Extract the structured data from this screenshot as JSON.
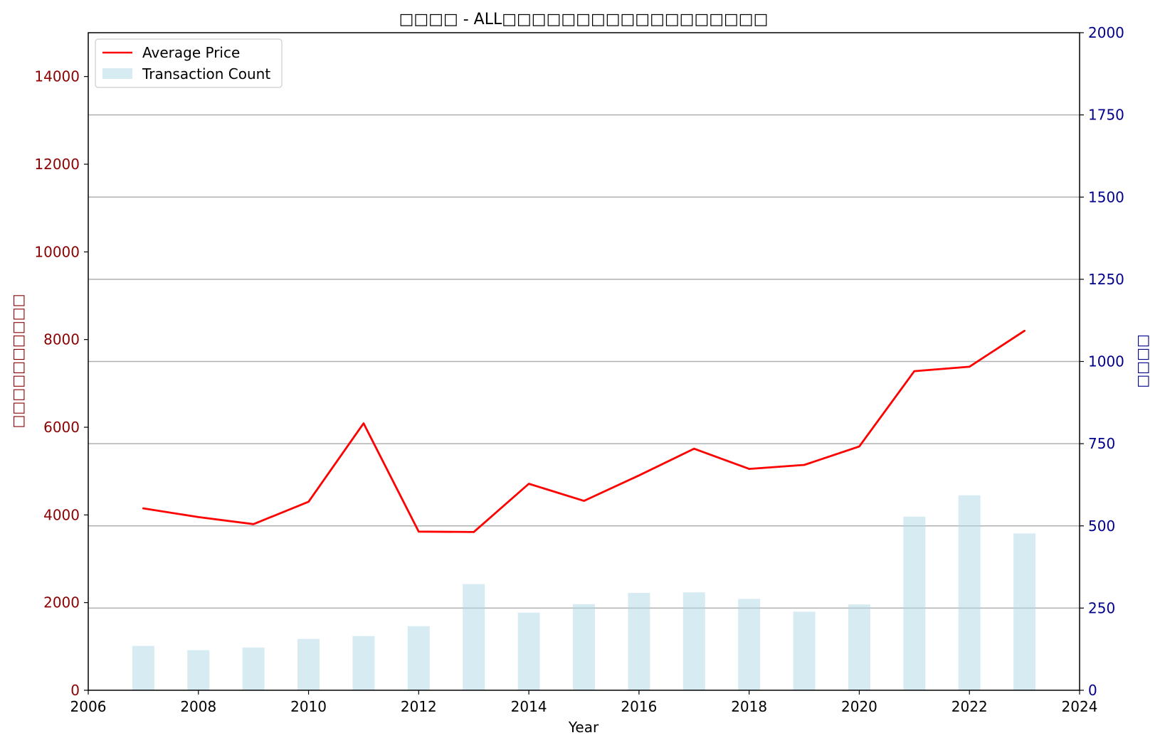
{
  "chart_data": {
    "type": "line",
    "title": "□□□□ - ALL□□□□□□□□□□□□□□□□□□",
    "xlabel": "Year",
    "ylabel_left": "□□□□□□□□□□",
    "ylabel_right": "□□□□",
    "xlim": [
      2006,
      2024
    ],
    "ylim_left": [
      0,
      15000
    ],
    "ylim_right": [
      0,
      2000
    ],
    "x_ticks": [
      "2006",
      "2008",
      "2010",
      "2012",
      "2014",
      "2016",
      "2018",
      "2020",
      "2022",
      "2024"
    ],
    "y_left_ticks": [
      "0",
      "2000",
      "4000",
      "6000",
      "8000",
      "10000",
      "12000",
      "14000"
    ],
    "y_right_ticks": [
      "0",
      "250",
      "500",
      "750",
      "1000",
      "1250",
      "1500",
      "1750",
      "2000"
    ],
    "grid": "horizontal (right axis)",
    "legend_position": "top-left",
    "x": [
      2007,
      2008,
      2009,
      2010,
      2011,
      2012,
      2013,
      2014,
      2015,
      2016,
      2017,
      2018,
      2019,
      2020,
      2021,
      2022,
      2023
    ],
    "series": [
      {
        "name": "Average Price",
        "type": "line",
        "axis": "left",
        "color": "#ff0000",
        "values": [
          4150,
          3950,
          3790,
          4300,
          6090,
          3620,
          3610,
          4710,
          4320,
          4900,
          5510,
          5050,
          5140,
          5560,
          7280,
          7380,
          8200
        ]
      },
      {
        "name": "Transaction Count",
        "type": "bar",
        "axis": "right",
        "color": "#add8e6",
        "values": [
          135,
          122,
          130,
          156,
          165,
          195,
          323,
          236,
          262,
          296,
          298,
          278,
          239,
          261,
          528,
          593,
          477
        ]
      }
    ],
    "colors": {
      "left_axis": "#8b0000",
      "right_axis": "#00008b",
      "grid": "#b0b0b0"
    }
  }
}
